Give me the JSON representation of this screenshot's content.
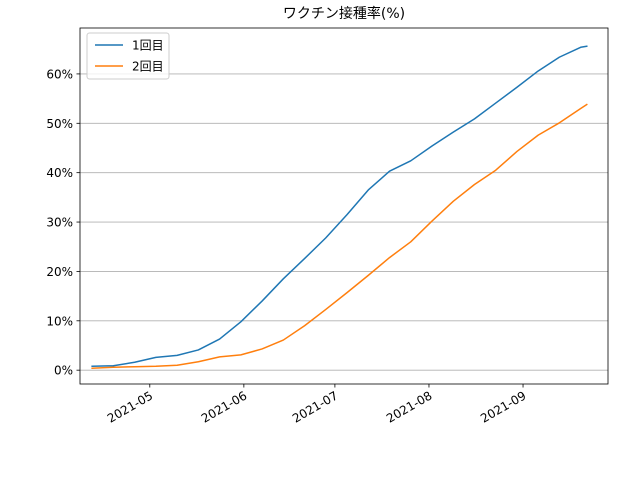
{
  "chart_data": {
    "type": "line",
    "title": "ワクチン接種率(%)",
    "xlabel": "",
    "ylabel": "",
    "x_axis": {
      "type": "date",
      "range": [
        "2021-04-08",
        "2021-09-29"
      ],
      "ticks": [
        "2021-05-01",
        "2021-06-01",
        "2021-07-01",
        "2021-08-01",
        "2021-09-01"
      ],
      "tick_labels": [
        "2021-05",
        "2021-06",
        "2021-07",
        "2021-08",
        "2021-09"
      ]
    },
    "y_axis": {
      "range": [
        -2.8,
        69.3
      ],
      "ticks": [
        0,
        10,
        20,
        30,
        40,
        50,
        60
      ],
      "tick_labels": [
        "0%",
        "10%",
        "20%",
        "30%",
        "40%",
        "50%",
        "60%"
      ]
    },
    "grid": {
      "y": true,
      "x": false
    },
    "legend": {
      "position": "top-left"
    },
    "series": [
      {
        "name": "1回目",
        "color": "#1f77b4",
        "points": [
          [
            "2021-04-12",
            0.8
          ],
          [
            "2021-04-19",
            0.9
          ],
          [
            "2021-04-26",
            1.6
          ],
          [
            "2021-05-03",
            2.6
          ],
          [
            "2021-05-10",
            3.0
          ],
          [
            "2021-05-17",
            4.1
          ],
          [
            "2021-05-24",
            6.3
          ],
          [
            "2021-05-31",
            9.8
          ],
          [
            "2021-06-07",
            14.0
          ],
          [
            "2021-06-14",
            18.5
          ],
          [
            "2021-06-21",
            22.6
          ],
          [
            "2021-06-28",
            26.8
          ],
          [
            "2021-07-05",
            31.5
          ],
          [
            "2021-07-12",
            36.5
          ],
          [
            "2021-07-19",
            40.3
          ],
          [
            "2021-07-26",
            42.4
          ],
          [
            "2021-08-02",
            45.4
          ],
          [
            "2021-08-09",
            48.2
          ],
          [
            "2021-08-16",
            50.9
          ],
          [
            "2021-08-23",
            54.1
          ],
          [
            "2021-08-30",
            57.3
          ],
          [
            "2021-09-06",
            60.6
          ],
          [
            "2021-09-13",
            63.4
          ],
          [
            "2021-09-20",
            65.4
          ],
          [
            "2021-09-22",
            65.6
          ]
        ]
      },
      {
        "name": "2回目",
        "color": "#ff7f0e",
        "points": [
          [
            "2021-04-12",
            0.4
          ],
          [
            "2021-04-19",
            0.6
          ],
          [
            "2021-04-26",
            0.7
          ],
          [
            "2021-05-03",
            0.8
          ],
          [
            "2021-05-10",
            1.0
          ],
          [
            "2021-05-17",
            1.7
          ],
          [
            "2021-05-24",
            2.7
          ],
          [
            "2021-05-31",
            3.1
          ],
          [
            "2021-06-07",
            4.3
          ],
          [
            "2021-06-14",
            6.1
          ],
          [
            "2021-06-21",
            9.0
          ],
          [
            "2021-06-28",
            12.3
          ],
          [
            "2021-07-05",
            15.7
          ],
          [
            "2021-07-12",
            19.2
          ],
          [
            "2021-07-19",
            22.8
          ],
          [
            "2021-07-26",
            26.0
          ],
          [
            "2021-08-02",
            30.2
          ],
          [
            "2021-08-09",
            34.2
          ],
          [
            "2021-08-16",
            37.6
          ],
          [
            "2021-08-23",
            40.5
          ],
          [
            "2021-08-30",
            44.3
          ],
          [
            "2021-09-06",
            47.6
          ],
          [
            "2021-09-13",
            50.1
          ],
          [
            "2021-09-20",
            53.0
          ],
          [
            "2021-09-22",
            53.8
          ]
        ]
      }
    ]
  }
}
